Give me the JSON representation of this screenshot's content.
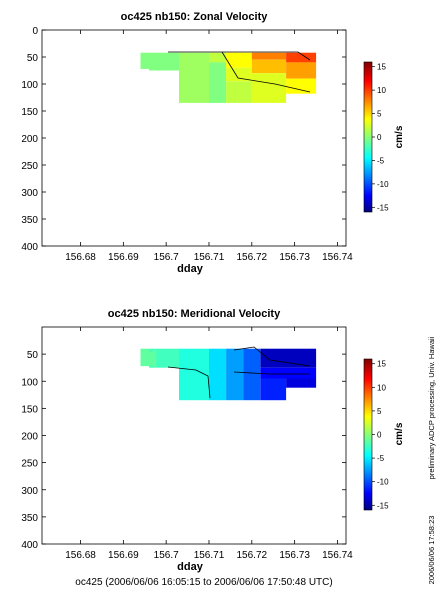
{
  "chart_data": [
    {
      "type": "heatmap",
      "title": "oc425 nb150: Zonal Velocity",
      "xlabel": "dday",
      "ylabel": "",
      "xlim": [
        156.671,
        156.742
      ],
      "ylim": [
        400,
        0
      ],
      "x_ticks": [
        "156.68",
        "156.69",
        "156.7",
        "156.71",
        "156.72",
        "156.73",
        "156.74"
      ],
      "x_tick_values": [
        156.68,
        156.69,
        156.7,
        156.71,
        156.72,
        156.73,
        156.74
      ],
      "y_ticks": [
        "0",
        "50",
        "100",
        "150",
        "200",
        "250",
        "300",
        "350",
        "400"
      ],
      "y_tick_values": [
        0,
        50,
        100,
        150,
        200,
        250,
        300,
        350,
        400
      ],
      "colorbar": {
        "label": "cm/s",
        "range": [
          -16,
          16
        ],
        "ticks": [
          "15",
          "10",
          "5",
          "0",
          "-5",
          "-10",
          "-15"
        ],
        "tick_values": [
          15,
          10,
          5,
          0,
          -5,
          -10,
          -15
        ]
      },
      "cells": [
        {
          "x0": 156.694,
          "x1": 156.696,
          "y0": 42,
          "y1": 72,
          "value": 0
        },
        {
          "x0": 156.696,
          "x1": 156.703,
          "y0": 42,
          "y1": 75,
          "value": 0
        },
        {
          "x0": 156.703,
          "x1": 156.71,
          "y0": 42,
          "y1": 75,
          "value": 1
        },
        {
          "x0": 156.703,
          "x1": 156.71,
          "y0": 75,
          "y1": 135,
          "value": 1
        },
        {
          "x0": 156.71,
          "x1": 156.714,
          "y0": 42,
          "y1": 60,
          "value": 2
        },
        {
          "x0": 156.71,
          "x1": 156.714,
          "y0": 60,
          "y1": 135,
          "value": 0
        },
        {
          "x0": 156.714,
          "x1": 156.72,
          "y0": 42,
          "y1": 70,
          "value": 4
        },
        {
          "x0": 156.714,
          "x1": 156.72,
          "y0": 70,
          "y1": 95,
          "value": 3
        },
        {
          "x0": 156.714,
          "x1": 156.72,
          "y0": 95,
          "y1": 135,
          "value": 2
        },
        {
          "x0": 156.72,
          "x1": 156.728,
          "y0": 42,
          "y1": 55,
          "value": 8
        },
        {
          "x0": 156.72,
          "x1": 156.728,
          "y0": 55,
          "y1": 80,
          "value": 6
        },
        {
          "x0": 156.72,
          "x1": 156.728,
          "y0": 80,
          "y1": 135,
          "value": 3
        },
        {
          "x0": 156.728,
          "x1": 156.735,
          "y0": 42,
          "y1": 60,
          "value": 10
        },
        {
          "x0": 156.728,
          "x1": 156.735,
          "y0": 60,
          "y1": 90,
          "value": 7
        },
        {
          "x0": 156.728,
          "x1": 156.735,
          "y0": 90,
          "y1": 118,
          "value": 4
        }
      ]
    },
    {
      "type": "heatmap",
      "title": "oc425 nb150: Meridional Velocity",
      "xlabel": "dday",
      "ylabel": "",
      "xlim": [
        156.671,
        156.742
      ],
      "ylim": [
        400,
        0
      ],
      "x_ticks": [
        "156.68",
        "156.69",
        "156.7",
        "156.71",
        "156.72",
        "156.73",
        "156.74"
      ],
      "x_tick_values": [
        156.68,
        156.69,
        156.7,
        156.71,
        156.72,
        156.73,
        156.74
      ],
      "y_ticks": [
        "50",
        "100",
        "150",
        "200",
        "250",
        "300",
        "350",
        "400"
      ],
      "y_tick_values": [
        50,
        100,
        150,
        200,
        250,
        300,
        350,
        400
      ],
      "colorbar": {
        "label": "cm/s",
        "range": [
          -16,
          16
        ],
        "ticks": [
          "15",
          "10",
          "5",
          "0",
          "-5",
          "-10",
          "-15"
        ],
        "tick_values": [
          15,
          10,
          5,
          0,
          -5,
          -10,
          -15
        ]
      },
      "cells": [
        {
          "x0": 156.694,
          "x1": 156.696,
          "y0": 40,
          "y1": 72,
          "value": -1
        },
        {
          "x0": 156.696,
          "x1": 156.703,
          "y0": 40,
          "y1": 75,
          "value": -2
        },
        {
          "x0": 156.703,
          "x1": 156.71,
          "y0": 40,
          "y1": 135,
          "value": -3
        },
        {
          "x0": 156.71,
          "x1": 156.714,
          "y0": 40,
          "y1": 135,
          "value": -5
        },
        {
          "x0": 156.714,
          "x1": 156.718,
          "y0": 40,
          "y1": 135,
          "value": -7
        },
        {
          "x0": 156.718,
          "x1": 156.722,
          "y0": 40,
          "y1": 135,
          "value": -9
        },
        {
          "x0": 156.722,
          "x1": 156.735,
          "y0": 40,
          "y1": 75,
          "value": -14
        },
        {
          "x0": 156.722,
          "x1": 156.735,
          "y0": 75,
          "y1": 95,
          "value": -12
        },
        {
          "x0": 156.722,
          "x1": 156.728,
          "y0": 95,
          "y1": 135,
          "value": -11
        },
        {
          "x0": 156.728,
          "x1": 156.735,
          "y0": 95,
          "y1": 112,
          "value": -13
        }
      ]
    }
  ],
  "side_note": "preliminary ADCP processing,   Univ. Hawaii",
  "timestamp": "2006/06/06 17:58:23",
  "footer": "oc425 (2006/06/06 16:05:15 to 2006/06/06 17:50:48 UTC)"
}
